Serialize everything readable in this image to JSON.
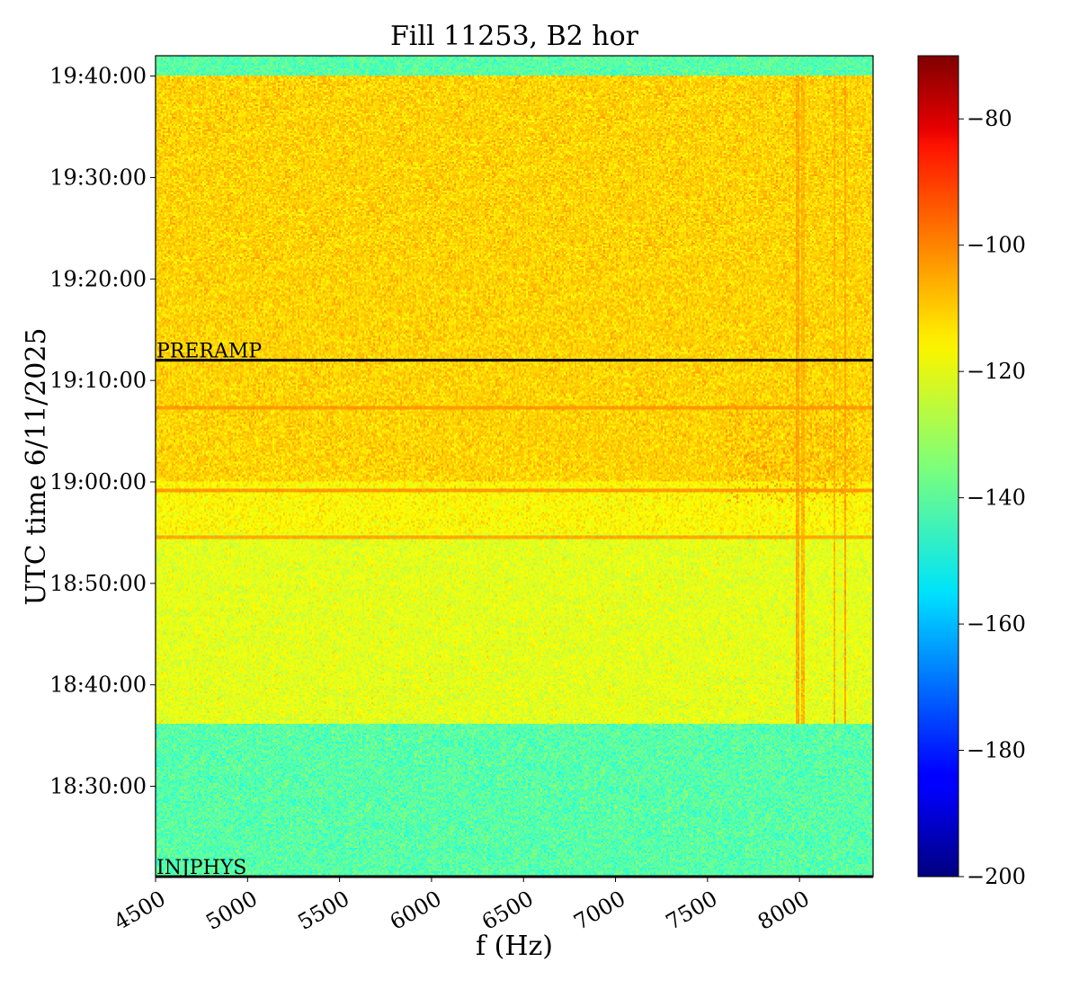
{
  "chart_data": {
    "type": "heatmap",
    "title": "Fill 11253, B2 hor",
    "xlabel": "f (Hz)",
    "ylabel": "UTC time 6/11/2025",
    "xlim": [
      4500,
      8400
    ],
    "x_ticks": [
      4500,
      5000,
      5500,
      6000,
      6500,
      7000,
      7500,
      8000
    ],
    "x_tick_labels": [
      "4500",
      "5000",
      "5500",
      "6000",
      "6500",
      "7000",
      "7500",
      "8000"
    ],
    "y_unit": "minutes since 18:00:00 UTC",
    "ylim": [
      21.1,
      102.0
    ],
    "y_ticks": [
      30,
      40,
      50,
      60,
      70,
      80,
      90,
      100
    ],
    "y_tick_labels": [
      "18:30:00",
      "18:40:00",
      "18:50:00",
      "19:00:00",
      "19:10:00",
      "19:20:00",
      "19:30:00",
      "19:40:00"
    ],
    "colorbar": {
      "colormap": "jet",
      "range": [
        -200,
        -70
      ],
      "ticks": [
        -200,
        -180,
        -160,
        -140,
        -120,
        -100,
        -80
      ],
      "tick_labels": [
        "−200",
        "−180",
        "−160",
        "−140",
        "−120",
        "−100",
        "−80"
      ]
    },
    "regions": [
      {
        "t_from": 21.1,
        "t_to": 36.2,
        "level_db": -140,
        "description_level": "background"
      },
      {
        "t_from": 36.2,
        "t_to": 55.0,
        "level_db": -122
      },
      {
        "t_from": 55.0,
        "t_to": 60.0,
        "level_db": -118
      },
      {
        "t_from": 60.0,
        "t_to": 100.0,
        "level_db": -113
      },
      {
        "t_from": 100.0,
        "t_to": 102.0,
        "level_db": -140
      }
    ],
    "horizontal_lines": [
      {
        "t": 54.6,
        "level_db": -108
      },
      {
        "t": 59.2,
        "level_db": -106
      },
      {
        "t": 67.3,
        "level_db": -106
      }
    ],
    "vertical_lines": [
      {
        "f": 7990,
        "t_from": 36.2,
        "t_to": 100.0,
        "level_db": -108
      },
      {
        "f": 8020,
        "t_from": 36.2,
        "t_to": 100.0,
        "level_db": -110
      },
      {
        "f": 8190,
        "t_from": 36.2,
        "t_to": 100.0,
        "level_db": -110
      },
      {
        "f": 8250,
        "t_from": 36.2,
        "t_to": 100.0,
        "level_db": -108
      }
    ],
    "markers": [
      {
        "label": "PRERAMP",
        "t": 72.0
      },
      {
        "label": "INJPHYS",
        "t": 21.1
      }
    ]
  }
}
